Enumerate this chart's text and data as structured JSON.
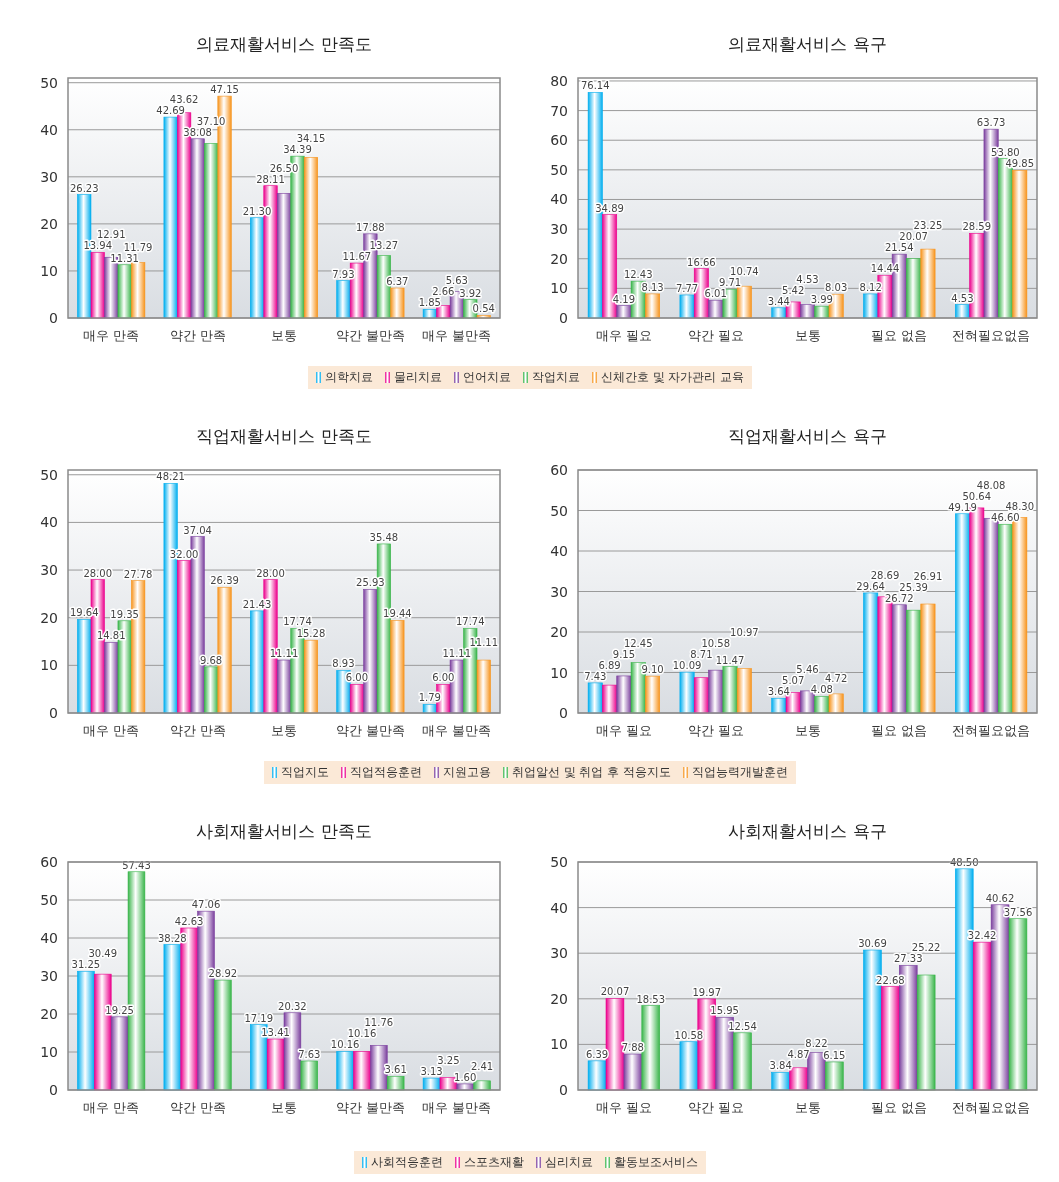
{
  "chart_data": [
    {
      "type": "bar",
      "title": "의료재활서비스 만족도",
      "categories": [
        "매우 만족",
        "약간 만족",
        "보통",
        "약간 불만족",
        "매우 불만족"
      ],
      "ylim": [
        0,
        51
      ],
      "yticks": [
        0,
        10,
        20,
        30,
        40,
        50
      ],
      "grid": "y",
      "legend": "bottom",
      "series": [
        {
          "name": "의학치료",
          "color": "#00aeef",
          "values": [
            26.23,
            42.69,
            21.3,
            7.93,
            1.85
          ],
          "value_labels": [
            "26.23",
            "42.69",
            "21.30",
            "7.93",
            "1.85"
          ]
        },
        {
          "name": "물리치료",
          "color": "#ec008c",
          "values": [
            13.94,
            43.62,
            28.11,
            11.67,
            2.66
          ],
          "value_labels": [
            "13.94",
            "43.62",
            "28.11",
            "11.67",
            "2.66"
          ]
        },
        {
          "name": "언어치료",
          "color": "#7b3f9e",
          "values": [
            12.91,
            38.08,
            26.5,
            17.88,
            5.63
          ],
          "value_labels": [
            "12.91",
            "38.08",
            "26.50",
            "17.88",
            "5.63"
          ]
        },
        {
          "name": "작업치료",
          "color": "#39b54a",
          "values": [
            11.31,
            37.1,
            34.39,
            13.27,
            3.92
          ],
          "value_labels": [
            "11.31",
            "37.10",
            "34.39",
            "13.27",
            "3.92"
          ]
        },
        {
          "name": "신체간호 및 자가관리 교육",
          "color": "#f7941d",
          "values": [
            11.79,
            47.15,
            34.15,
            6.37,
            0.54
          ],
          "value_labels": [
            "11.79",
            "47.15",
            "34.15",
            "6.37",
            "0.54"
          ]
        }
      ]
    },
    {
      "type": "bar",
      "title": "의료재활서비스 욕구",
      "categories": [
        "매우 필요",
        "약간 필요",
        "보통",
        "필요 없음",
        "전혀필요없음"
      ],
      "ylim": [
        0,
        81
      ],
      "yticks": [
        0,
        10,
        20,
        30,
        40,
        50,
        60,
        70,
        80
      ],
      "grid": "y",
      "series": [
        {
          "color": "#00aeef",
          "values": [
            76.14,
            7.77,
            3.44,
            8.12,
            4.53
          ],
          "value_labels": [
            "76.14",
            "7.77",
            "3.44",
            "8.12",
            "4.53"
          ]
        },
        {
          "color": "#ec008c",
          "values": [
            34.89,
            16.66,
            5.42,
            14.44,
            28.59
          ],
          "value_labels": [
            "34.89",
            "16.66",
            "5.42",
            "14.44",
            "28.59"
          ]
        },
        {
          "color": "#7b3f9e",
          "values": [
            4.19,
            6.01,
            4.53,
            21.54,
            63.73
          ],
          "value_labels": [
            "4.19",
            "6.01",
            "4.53",
            "21.54",
            "63.73"
          ]
        },
        {
          "color": "#39b54a",
          "values": [
            12.43,
            9.71,
            3.99,
            20.07,
            53.8
          ],
          "value_labels": [
            "12.43",
            "9.71",
            "3.99",
            "20.07",
            "53.80"
          ]
        },
        {
          "color": "#f7941d",
          "values": [
            8.13,
            10.74,
            8.03,
            23.25,
            49.85
          ],
          "value_labels": [
            "8.13",
            "10.74",
            "8.03",
            "23.25",
            "49.85"
          ]
        }
      ]
    },
    {
      "type": "bar",
      "title": "직업재활서비스 만족도",
      "categories": [
        "매우 만족",
        "약간 만족",
        "보통",
        "약간 불만족",
        "매우 불만족"
      ],
      "ylim": [
        0,
        51
      ],
      "yticks": [
        0,
        10,
        20,
        30,
        40,
        50
      ],
      "grid": "y",
      "legend": "bottom",
      "series": [
        {
          "name": "직업지도",
          "color": "#00aeef",
          "values": [
            19.64,
            48.21,
            21.43,
            8.93,
            1.79
          ],
          "value_labels": [
            "19.64",
            "48.21",
            "21.43",
            "8.93",
            "1.79"
          ]
        },
        {
          "name": "직업적응훈련",
          "color": "#ec008c",
          "values": [
            28.0,
            32.0,
            28.0,
            6.0,
            6.0
          ],
          "value_labels": [
            "28.00",
            "32.00",
            "28.00",
            "6.00",
            "6.00"
          ]
        },
        {
          "name": "지원고용",
          "color": "#7b3f9e",
          "values": [
            14.81,
            37.04,
            11.11,
            25.93,
            11.11
          ],
          "value_labels": [
            "14.81",
            "37.04",
            "11.11",
            "25.93",
            "11.11"
          ]
        },
        {
          "name": "취업알선 및 취업 후 적응지도",
          "color": "#39b54a",
          "values": [
            19.35,
            9.68,
            17.74,
            35.48,
            17.74
          ],
          "value_labels": [
            "19.35",
            "9.68",
            "17.74",
            "35.48",
            "17.74"
          ]
        },
        {
          "name": "직업능력개발훈련",
          "color": "#f7941d",
          "values": [
            27.78,
            26.39,
            15.28,
            19.44,
            11.11
          ],
          "value_labels": [
            "27.78",
            "26.39",
            "15.28",
            "19.44",
            "11.11"
          ]
        }
      ]
    },
    {
      "type": "bar",
      "title": "직업재활서비스 욕구",
      "categories": [
        "매우 필요",
        "약간 필요",
        "보통",
        "필요 없음",
        "전혀필요없음"
      ],
      "ylim": [
        0,
        60
      ],
      "yticks": [
        0,
        10,
        20,
        30,
        40,
        50,
        60
      ],
      "grid": "y",
      "series": [
        {
          "color": "#00aeef",
          "values": [
            7.43,
            10.09,
            3.64,
            29.64,
            49.19
          ],
          "value_labels": [
            "7.43",
            "10.09",
            "3.64",
            "29.64",
            "49.19"
          ]
        },
        {
          "color": "#ec008c",
          "values": [
            6.89,
            8.71,
            5.07,
            28.69,
            50.64
          ],
          "value_labels": [
            "6.89",
            "8.71",
            "5.07",
            "28.69",
            "50.64"
          ]
        },
        {
          "color": "#7b3f9e",
          "values": [
            9.15,
            10.58,
            5.46,
            26.72,
            48.08
          ],
          "value_labels": [
            "9.15",
            "10.58",
            "5.46",
            "26.72",
            "48.08"
          ]
        },
        {
          "color": "#39b54a",
          "values": [
            12.45,
            11.47,
            4.08,
            25.39,
            46.6
          ],
          "value_labels": [
            "12.45",
            "11.47",
            "4.08",
            "25.39",
            "46.60"
          ]
        },
        {
          "color": "#f7941d",
          "values": [
            9.1,
            10.97,
            4.72,
            26.91,
            48.3
          ],
          "value_labels": [
            "9.10",
            "10.97",
            "4.72",
            "26.91",
            "48.30"
          ]
        }
      ]
    },
    {
      "type": "bar",
      "title": "사회재활서비스 만족도",
      "categories": [
        "매우 만족",
        "약간 만족",
        "보통",
        "약간 불만족",
        "매우 불만족"
      ],
      "ylim": [
        0,
        60
      ],
      "yticks": [
        0,
        10,
        20,
        30,
        40,
        50,
        60
      ],
      "grid": "y",
      "legend": "bottom",
      "series": [
        {
          "name": "사회적응훈련",
          "color": "#00aeef",
          "values": [
            31.25,
            38.28,
            17.19,
            10.16,
            3.13
          ],
          "value_labels": [
            "31.25",
            "38.28",
            "17.19",
            "10.16",
            "3.13"
          ]
        },
        {
          "name": "스포츠재활",
          "color": "#ec008c",
          "values": [
            30.49,
            42.63,
            13.41,
            10.16,
            3.25
          ],
          "value_labels": [
            "30.49",
            "42.63",
            "13.41",
            "10.16",
            "3.25"
          ]
        },
        {
          "name": "심리치료",
          "color": "#7b3f9e",
          "values": [
            19.25,
            47.06,
            20.32,
            11.76,
            1.6
          ],
          "value_labels": [
            "19.25",
            "47.06",
            "20.32",
            "11.76",
            "1.60"
          ]
        },
        {
          "name": "활동보조서비스",
          "color": "#39b54a",
          "values": [
            57.43,
            28.92,
            7.63,
            3.61,
            2.41
          ],
          "value_labels": [
            "57.43",
            "28.92",
            "7.63",
            "3.61",
            "2.41"
          ]
        }
      ]
    },
    {
      "type": "bar",
      "title": "사회재활서비스 욕구",
      "categories": [
        "매우 필요",
        "약간 필요",
        "보통",
        "필요 없음",
        "전혀필요없음"
      ],
      "ylim": [
        0,
        50
      ],
      "yticks": [
        0,
        10,
        20,
        30,
        40,
        50
      ],
      "grid": "y",
      "series": [
        {
          "color": "#00aeef",
          "values": [
            6.39,
            10.58,
            3.84,
            30.69,
            48.5
          ],
          "value_labels": [
            "6.39",
            "10.58",
            "3.84",
            "30.69",
            "48.50"
          ]
        },
        {
          "color": "#ec008c",
          "values": [
            20.07,
            19.97,
            4.87,
            22.68,
            32.42
          ],
          "value_labels": [
            "20.07",
            "19.97",
            "4.87",
            "22.68",
            "32.42"
          ]
        },
        {
          "color": "#7b3f9e",
          "values": [
            7.88,
            15.95,
            8.22,
            27.33,
            40.62
          ],
          "value_labels": [
            "7.88",
            "15.95",
            "8.22",
            "27.33",
            "40.62"
          ]
        },
        {
          "color": "#39b54a",
          "values": [
            18.53,
            12.54,
            6.15,
            25.22,
            37.56
          ],
          "value_labels": [
            "18.53",
            "12.54",
            "6.15",
            "25.22",
            "37.56"
          ]
        }
      ]
    }
  ]
}
